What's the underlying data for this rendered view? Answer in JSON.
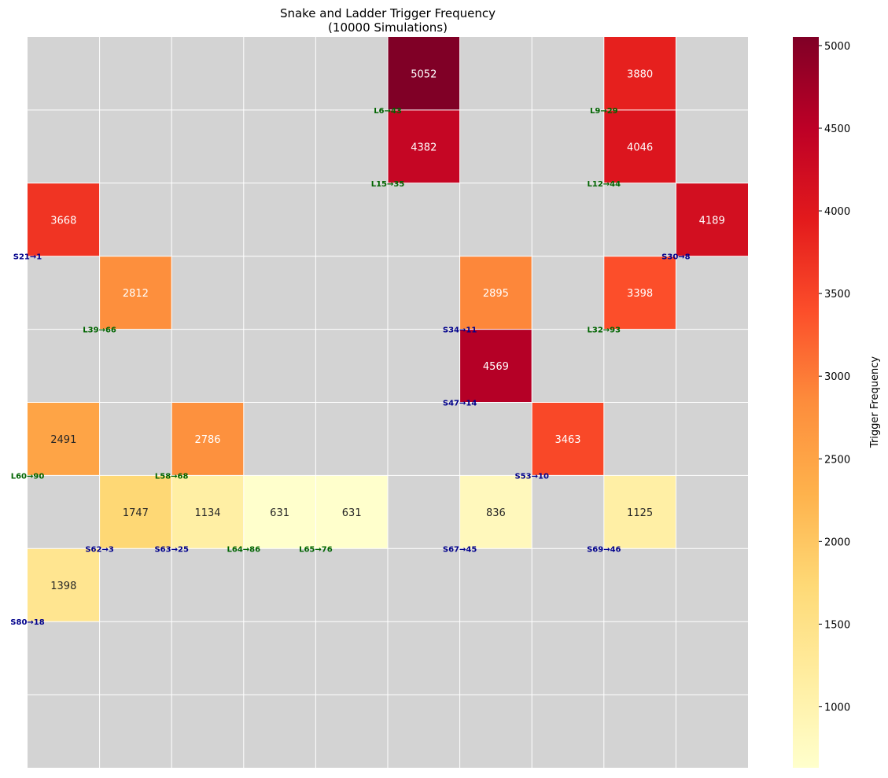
{
  "chart_data": {
    "type": "heatmap",
    "title": "Snake and Ladder Trigger Frequency",
    "subtitle": "(10000 Simulations)",
    "grid_rows": 10,
    "grid_cols": 10,
    "empty_color": "#d3d3d3",
    "colormap": "YlOrRd",
    "colorbar": {
      "label": "Trigger Frequency",
      "min": 631,
      "max": 5052,
      "ticks": [
        "1000",
        "1500",
        "2000",
        "2500",
        "3000",
        "3500",
        "4000",
        "4500",
        "5000"
      ]
    },
    "cells": [
      {
        "row": 0,
        "col": 5,
        "value": 5052,
        "display": "5052",
        "label": "L6→43",
        "kind": "ladder"
      },
      {
        "row": 0,
        "col": 8,
        "value": 3880,
        "display": "3880",
        "label": "L9→29",
        "kind": "ladder"
      },
      {
        "row": 1,
        "col": 5,
        "value": 4382,
        "display": "4382",
        "label": "L15→35",
        "kind": "ladder"
      },
      {
        "row": 1,
        "col": 8,
        "value": 4046,
        "display": "4046",
        "label": "L12→44",
        "kind": "ladder"
      },
      {
        "row": 2,
        "col": 0,
        "value": 3668,
        "display": "3668",
        "label": "S21→1",
        "kind": "snake"
      },
      {
        "row": 2,
        "col": 9,
        "value": 4189,
        "display": "4189",
        "label": "S30→8",
        "kind": "snake"
      },
      {
        "row": 3,
        "col": 1,
        "value": 2812,
        "display": "2812",
        "label": "L39→66",
        "kind": "ladder"
      },
      {
        "row": 3,
        "col": 6,
        "value": 2895,
        "display": "2895",
        "label": "S34→11",
        "kind": "snake"
      },
      {
        "row": 3,
        "col": 8,
        "value": 3398,
        "display": "3398",
        "label": "L32→93",
        "kind": "ladder"
      },
      {
        "row": 4,
        "col": 6,
        "value": 4569,
        "display": "4569",
        "label": "S47→14",
        "kind": "snake"
      },
      {
        "row": 5,
        "col": 0,
        "value": 2491,
        "display": "2491",
        "label": "L60→90",
        "kind": "ladder"
      },
      {
        "row": 5,
        "col": 2,
        "value": 2786,
        "display": "2786",
        "label": "L58→68",
        "kind": "ladder"
      },
      {
        "row": 5,
        "col": 7,
        "value": 3463,
        "display": "3463",
        "label": "S53→10",
        "kind": "snake"
      },
      {
        "row": 6,
        "col": 1,
        "value": 1747,
        "display": "1747",
        "label": "S62→3",
        "kind": "snake"
      },
      {
        "row": 6,
        "col": 2,
        "value": 1134,
        "display": "1134",
        "label": "S63→25",
        "kind": "snake"
      },
      {
        "row": 6,
        "col": 3,
        "value": 631,
        "display": "631",
        "label": "L64→86",
        "kind": "ladder"
      },
      {
        "row": 6,
        "col": 4,
        "value": 631,
        "display": "631",
        "label": "L65→76",
        "kind": "ladder"
      },
      {
        "row": 6,
        "col": 6,
        "value": 836,
        "display": "836",
        "label": "S67→45",
        "kind": "snake"
      },
      {
        "row": 6,
        "col": 8,
        "value": 1125,
        "display": "1125",
        "label": "S69→46",
        "kind": "snake"
      },
      {
        "row": 7,
        "col": 0,
        "value": 1398,
        "display": "1398",
        "label": "S80→18",
        "kind": "snake"
      }
    ],
    "label_colors": {
      "ladder": "#006400",
      "snake": "#00008b"
    }
  }
}
